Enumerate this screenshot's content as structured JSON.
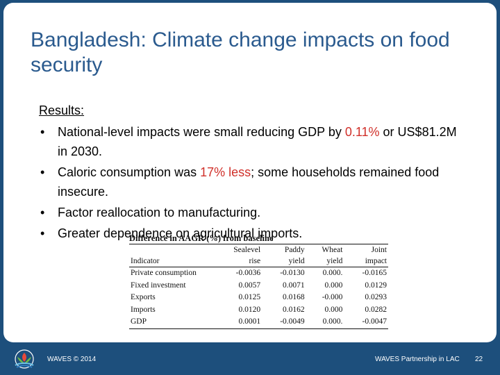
{
  "slide": {
    "title": "Bangladesh: Climate change impacts on food security",
    "results_label": "Results:",
    "bullets": [
      {
        "before": "National-level impacts were small reducing GDP by ",
        "highlight": "0.11%",
        "after": " or US$81.2M in 2030."
      },
      {
        "before": "Caloric consumption was ",
        "highlight": "17% less",
        "after": "; some households remained food insecure."
      },
      {
        "before": "Factor reallocation to manufacturing.",
        "highlight": "",
        "after": ""
      },
      {
        "before": "Greater dependence on agricultural imports.",
        "highlight": "",
        "after": ""
      }
    ],
    "bullet_symbol": "•",
    "highlight_color": "#d0302a"
  },
  "table": {
    "caption": "Difference in AAGR (%) from baseline",
    "header_row1": [
      "",
      "Sealevel",
      "Paddy",
      "Wheat",
      "Joint"
    ],
    "header_row2": [
      "Indicator",
      "rise",
      "yield",
      "yield",
      "impact"
    ],
    "rows": [
      [
        "Private consumption",
        "-0.0036",
        "-0.0130",
        "0.000.",
        "-0.0165"
      ],
      [
        "Fixed investment",
        "0.0057",
        "0.0071",
        "0.000",
        "0.0129"
      ],
      [
        "Exports",
        "0.0125",
        "0.0168",
        "-0.000",
        "0.0293"
      ],
      [
        "Imports",
        "0.0120",
        "0.0162",
        "0.000",
        "0.0282"
      ],
      [
        "GDP",
        "0.0001",
        "-0.0049",
        "0.000.",
        "-0.0047"
      ]
    ]
  },
  "footer": {
    "left": "WAVES © 2014",
    "center": "WAVES Partnership in LAC",
    "page": "22"
  },
  "logo": {
    "icon": "waves-logo-icon"
  },
  "colors": {
    "background": "#1d4f7c",
    "title": "#2a5a8e",
    "highlight": "#d0302a"
  }
}
